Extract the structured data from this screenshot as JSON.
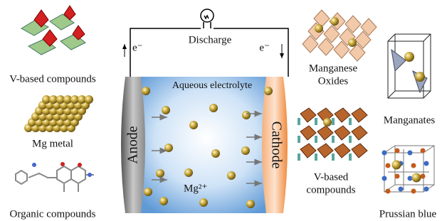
{
  "left_materials": [
    {
      "label": "V-based compounds"
    },
    {
      "label": "Mg metal"
    },
    {
      "label": "Organic compounds"
    }
  ],
  "circuit": {
    "label": "Discharge",
    "electron_left": "e⁻",
    "electron_right": "e⁻"
  },
  "cell": {
    "electrolyte": "Aqueous electrolyte",
    "anode": "Anode",
    "cathode": "Cathode",
    "ion": "Mg²⁺"
  },
  "right_materials": [
    {
      "lines": [
        "Manganese",
        "Oxides"
      ]
    },
    {
      "lines": [
        "V-based",
        "compounds"
      ]
    },
    {
      "label": "Manganates"
    },
    {
      "label": "Prussian blue"
    }
  ]
}
